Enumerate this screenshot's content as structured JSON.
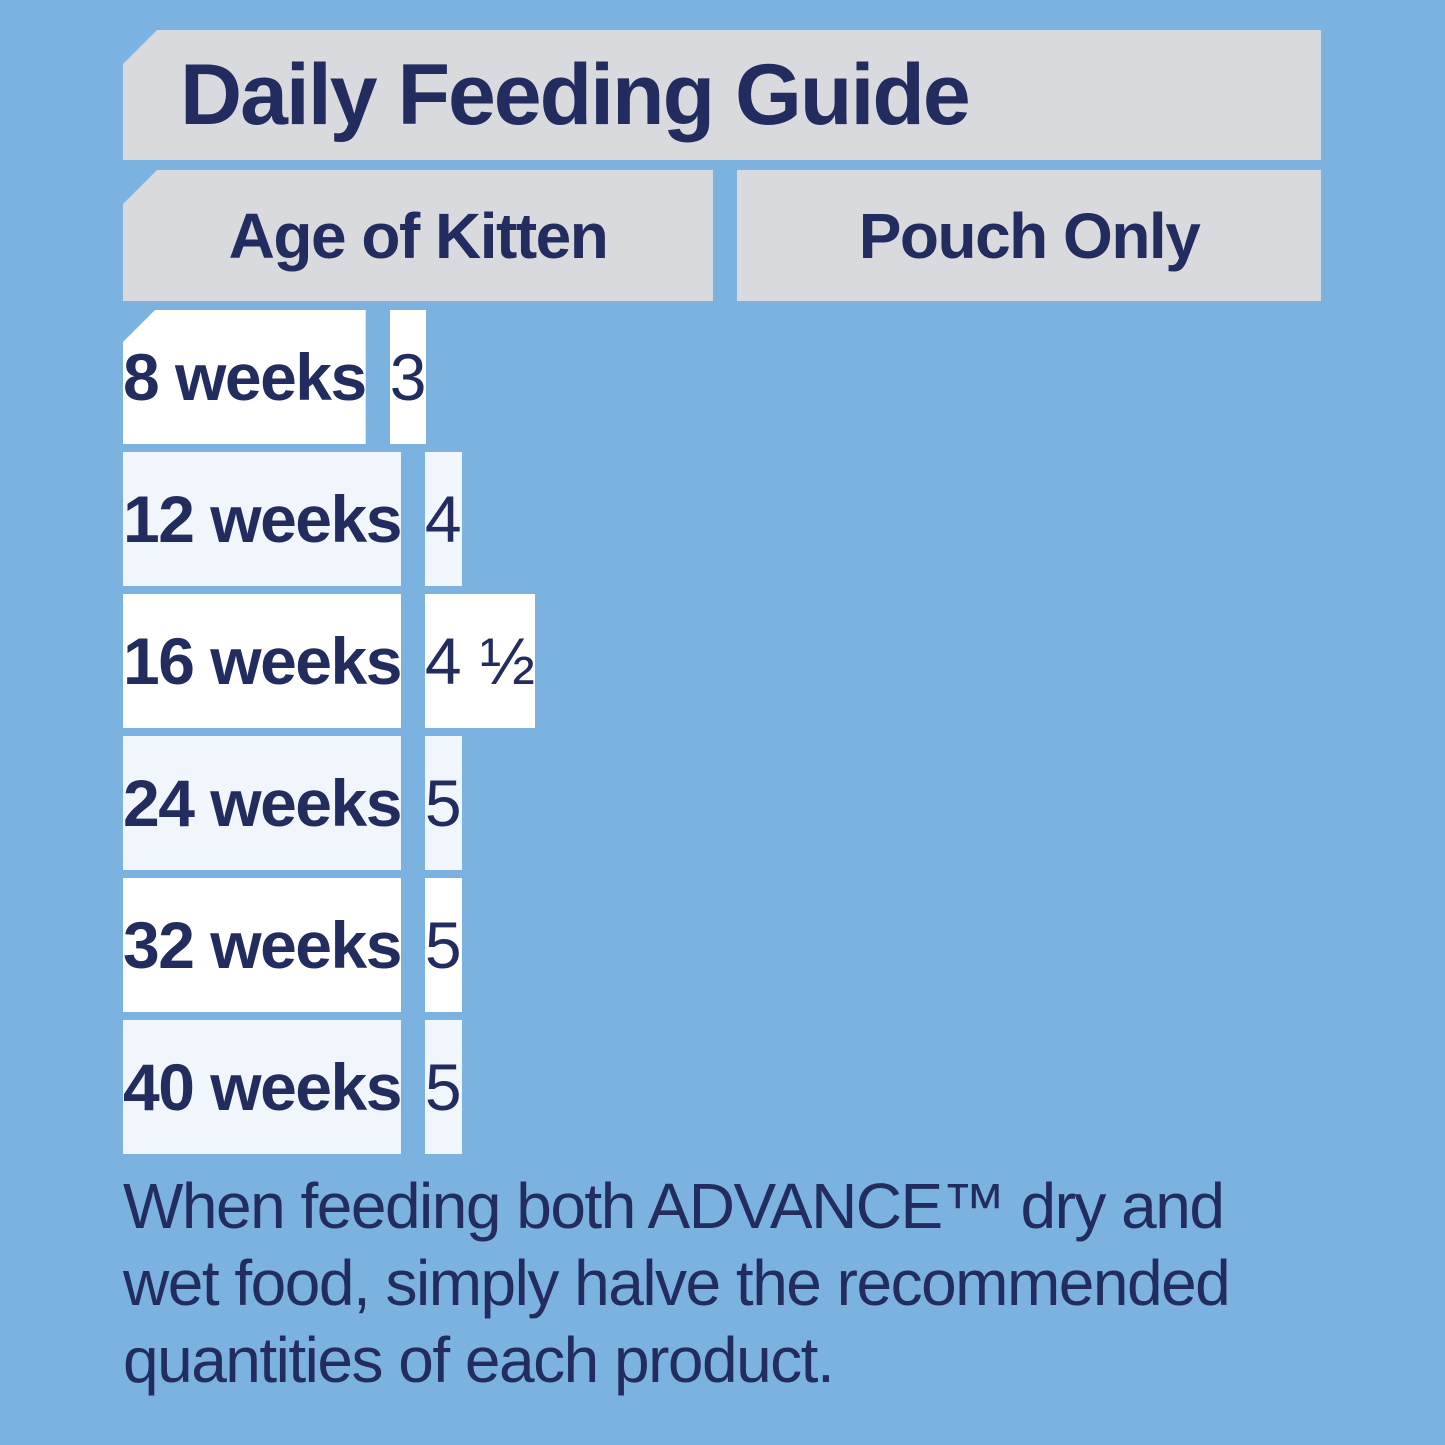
{
  "colors": {
    "background": "#7CB2E0",
    "panel_gray": "#D8DADD",
    "row_white": "#FFFFFF",
    "row_tint": "#F0F6FB",
    "text_navy": "#232C5E"
  },
  "table": {
    "title": "Daily Feeding Guide",
    "columns": [
      "Age of Kitten",
      "Pouch Only"
    ],
    "rows": [
      {
        "age": "8 weeks",
        "pouch": "3"
      },
      {
        "age": "12 weeks",
        "pouch": "4"
      },
      {
        "age": "16 weeks",
        "pouch": "4 ½"
      },
      {
        "age": "24 weeks",
        "pouch": "5"
      },
      {
        "age": "32 weeks",
        "pouch": "5"
      },
      {
        "age": "40 weeks",
        "pouch": "5"
      }
    ]
  },
  "footer": {
    "note": "When feeding both ADVANCE™ dry and wet food, simply halve the recommended quantities of each product.",
    "lines": [
      "When feeding both ADVANCE™ dry and",
      "wet food, simply halve the recommended",
      "quantities of each product."
    ]
  },
  "chart_data": {
    "type": "table",
    "title": "Daily Feeding Guide",
    "columns": [
      "Age of Kitten",
      "Pouch Only"
    ],
    "categories": [
      "8 weeks",
      "12 weeks",
      "16 weeks",
      "24 weeks",
      "32 weeks",
      "40 weeks"
    ],
    "values": [
      3,
      4,
      4.5,
      5,
      5,
      5
    ],
    "values_display": [
      "3",
      "4",
      "4 ½",
      "5",
      "5",
      "5"
    ],
    "note": "When feeding both ADVANCE™ dry and wet food, simply halve the recommended quantities of each product."
  }
}
